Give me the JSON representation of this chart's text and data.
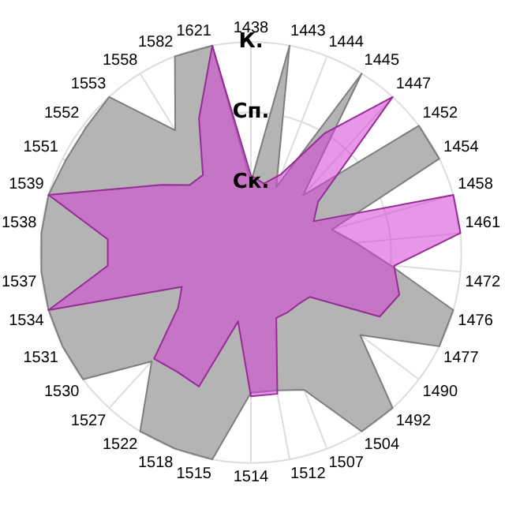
{
  "chart_data": {
    "type": "radar",
    "categories": [
      "1438",
      "1443",
      "1444",
      "1445",
      "1447",
      "1452",
      "1454",
      "1458",
      "1461",
      "1472",
      "1476",
      "1477",
      "1490",
      "1492",
      "1504",
      "1507",
      "1512",
      "1514",
      "1515",
      "1518",
      "1522",
      "1527",
      "1530",
      "1531",
      "1534",
      "1537",
      "1538",
      "1539",
      "1551",
      "1552",
      "1553",
      "1558",
      "1582",
      "1621"
    ],
    "series": [
      {
        "color": "#b4b4b4",
        "values": [
          1.0,
          3.0,
          1.0,
          3.0,
          1.1,
          3.0,
          3.0,
          1.2,
          1.5,
          2.0,
          3.0,
          3.0,
          1.95,
          3.0,
          3.0,
          2.1,
          2.0,
          2.0,
          3.0,
          3.0,
          3.0,
          2.1,
          3.0,
          3.0,
          3.0,
          3.0,
          3.0,
          3.0,
          2.95,
          2.95,
          3.0,
          2.05,
          3.0,
          3.0
        ]
      },
      {
        "color": "#d63fd6",
        "values": [
          1.1,
          1.0,
          1.2,
          2.0,
          3.0,
          1.2,
          1.0,
          3.0,
          3.0,
          2.05,
          2.2,
          2.05,
          1.05,
          1.0,
          1.0,
          1.0,
          2.05,
          2.05,
          1.0,
          2.05,
          2.0,
          2.05,
          1.3,
          1.1,
          3.0,
          2.05,
          2.05,
          3.0,
          2.05,
          1.6,
          1.3,
          1.3,
          2.05,
          3.0
        ]
      }
    ],
    "ylim": [
      0,
      3
    ],
    "yticks": [
      {
        "value": 1,
        "label": "Ск."
      },
      {
        "value": 2,
        "label": "Сп."
      },
      {
        "value": 3,
        "label": "К."
      }
    ],
    "grid": true,
    "legend": false
  }
}
